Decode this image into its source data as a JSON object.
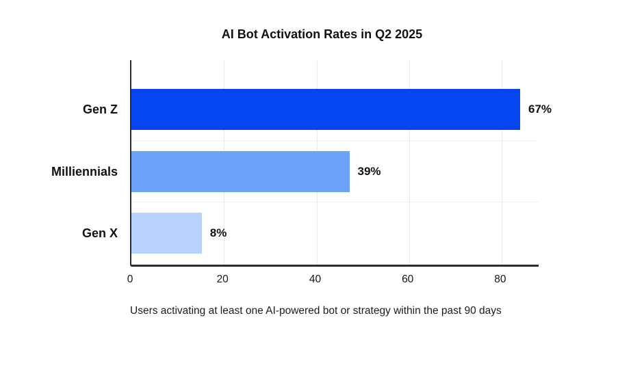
{
  "chart": {
    "title": "AI Bot Activation Rates in Q2 2025",
    "caption": "Users activating at least one AI-powered bot or strategy within the past 90 days"
  },
  "chart_data": {
    "type": "bar",
    "orientation": "horizontal",
    "title": "AI Bot Activation Rates in Q2 2025",
    "categories": [
      "Gen Z",
      "Milliennials",
      "Gen X"
    ],
    "values": [
      67,
      39,
      8
    ],
    "value_labels": [
      "67%",
      "39%",
      "8%"
    ],
    "bar_colors": [
      "#0546F2",
      "#6AA3F8",
      "#B7D2FB"
    ],
    "x_ticks": [
      0,
      20,
      40,
      60,
      80
    ],
    "xlim": [
      0,
      88
    ],
    "bar_visual_extents": [
      84,
      47.1,
      15.2
    ],
    "grid": true,
    "legend_position": "none",
    "xlabel": "",
    "ylabel": "",
    "caption": "Users activating at least one AI-powered bot or strategy within the past 90 days",
    "axis_color": "#2b2b2b",
    "gridline_color": "#e9e9e9",
    "text_color": "#111111"
  }
}
